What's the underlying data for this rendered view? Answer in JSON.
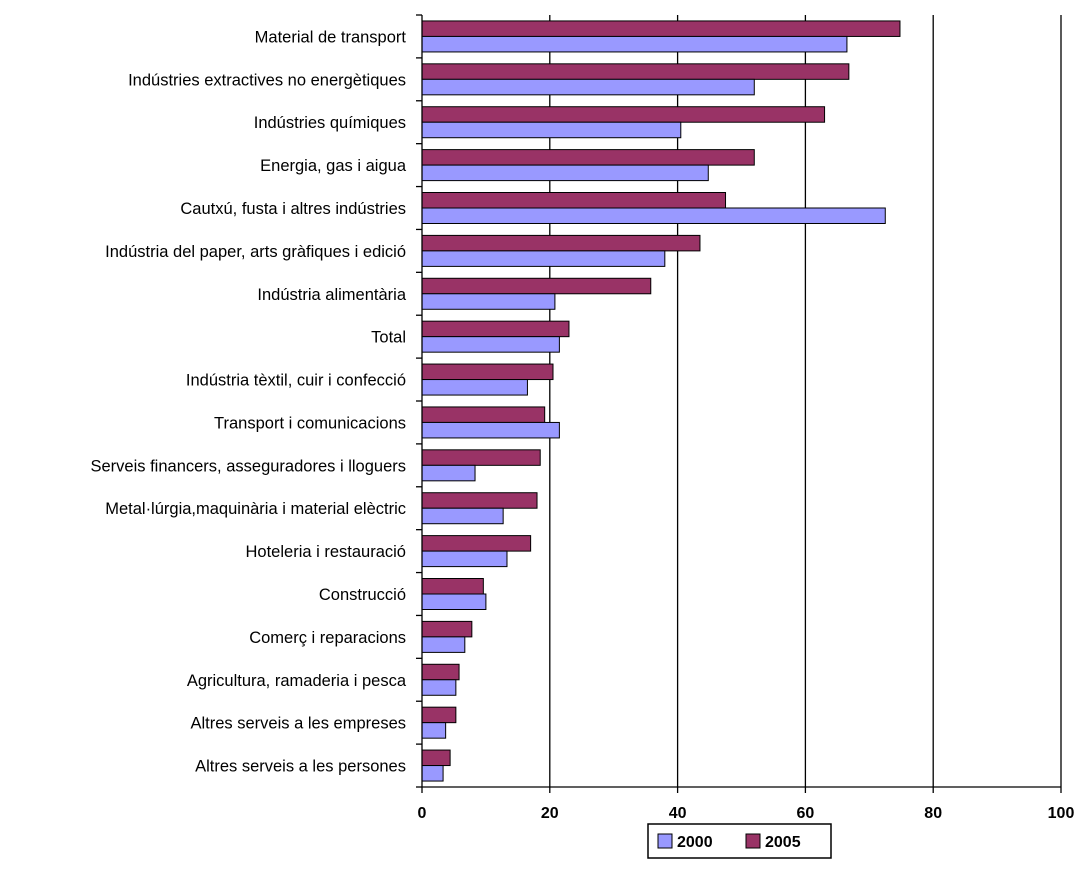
{
  "chart_data": {
    "type": "bar",
    "orientation": "horizontal",
    "categories": [
      "Material de transport",
      "Indústries extractives no energètiques",
      "Indústries químiques",
      "Energia, gas i aigua",
      "Cautxú, fusta i altres indústries",
      "Indústria del paper, arts gràfiques i edició",
      "Indústria alimentària",
      "Total",
      "Indústria tèxtil, cuir i confecció",
      "Transport i comunicacions",
      "Serveis financers, asseguradores i lloguers",
      "Metal·lúrgia,maquinària i material elèctric",
      "Hoteleria i restauració",
      "Construcció",
      "Comerç i reparacions",
      "Agricultura, ramaderia i pesca",
      "Altres serveis a les empreses",
      "Altres serveis a les persones"
    ],
    "series": [
      {
        "name": "2000",
        "color": "#9999ff",
        "values": [
          66.5,
          52,
          40.5,
          44.8,
          72.5,
          38,
          20.8,
          21.5,
          16.5,
          21.5,
          8.3,
          12.7,
          13.3,
          10,
          6.7,
          5.3,
          3.7,
          3.3
        ]
      },
      {
        "name": "2005",
        "color": "#993366",
        "values": [
          74.8,
          66.8,
          63,
          52,
          47.5,
          43.5,
          35.8,
          23,
          20.5,
          19.2,
          18.5,
          18,
          17,
          9.6,
          7.8,
          5.8,
          5.3,
          4.4
        ]
      }
    ],
    "xlim": [
      0,
      100
    ],
    "x_ticks": [
      "0",
      "20",
      "40",
      "60",
      "80",
      "100"
    ],
    "grid": "vertical",
    "legend_position": "bottom-center",
    "title": "",
    "xlabel": "",
    "ylabel": ""
  }
}
